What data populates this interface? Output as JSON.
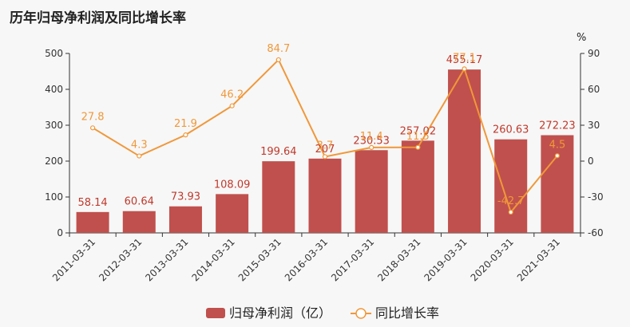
{
  "chart_data": {
    "type": "bar",
    "title": "历年归母净利润及同比增长率",
    "categories": [
      "2011-03-31",
      "2012-03-31",
      "2013-03-31",
      "2014-03-31",
      "2015-03-31",
      "2016-03-31",
      "2017-03-31",
      "2018-03-31",
      "2019-03-31",
      "2020-03-31",
      "2021-03-31"
    ],
    "series": [
      {
        "name": "归母净利润（亿）",
        "type": "bar",
        "axis": "left",
        "color": "#c0504d",
        "values": [
          58.14,
          60.64,
          73.93,
          108.09,
          199.64,
          207,
          230.53,
          257.02,
          455.17,
          260.63,
          272.23
        ],
        "labels": [
          "58.14",
          "60.64",
          "73.93",
          "108.09",
          "199.64",
          "207",
          "230.53",
          "257.02",
          "455.17",
          "260.63",
          "272.23"
        ]
      },
      {
        "name": "同比增长率",
        "type": "line",
        "axis": "right",
        "color": "#f0983a",
        "values": [
          27.8,
          4.3,
          21.9,
          46.2,
          84.7,
          3.7,
          11.4,
          11.5,
          77.1,
          -42.7,
          4.5
        ],
        "labels": [
          "27.8",
          "4.3",
          "21.9",
          "46.2",
          "84.7",
          "3.7",
          "11.4",
          "11.5",
          "77.1",
          "-42.7",
          "4.5"
        ]
      }
    ],
    "y_left": {
      "min": 0,
      "max": 500,
      "ticks": [
        "0",
        "100",
        "200",
        "300",
        "400",
        "500"
      ]
    },
    "y_right": {
      "min": -60,
      "max": 90,
      "ticks": [
        "-60",
        "-30",
        "0",
        "30",
        "60",
        "90"
      ],
      "unit": "%"
    },
    "grid": false,
    "legend": "bottom"
  }
}
